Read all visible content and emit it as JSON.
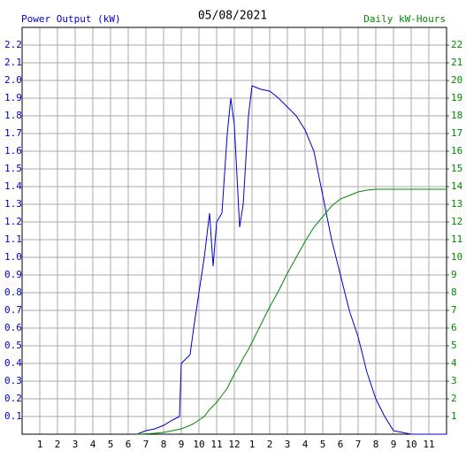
{
  "chart_data": {
    "type": "line",
    "title": "05/08/2021",
    "y_label": "Power Output (kW)",
    "y2_label": "Daily kW-Hours",
    "x": [
      6.5,
      7,
      7.5,
      8,
      8.5,
      8.9,
      9,
      9.5,
      9.7,
      10,
      10.3,
      10.6,
      10.8,
      11,
      11.3,
      11.6,
      11.8,
      12,
      12.3,
      12.5,
      12.8,
      13,
      13.5,
      14,
      14.5,
      15,
      15.5,
      16,
      16.5,
      17,
      17.5,
      18,
      18.5,
      19,
      19.5,
      20,
      20.5,
      21,
      21.5,
      22,
      24
    ],
    "series": [
      {
        "name": "Power Output (kW)",
        "color": "#0000cc",
        "values": [
          0,
          0.02,
          0.03,
          0.05,
          0.08,
          0.1,
          0.4,
          0.45,
          0.6,
          0.8,
          1.0,
          1.25,
          0.95,
          1.2,
          1.25,
          1.7,
          1.9,
          1.75,
          1.17,
          1.3,
          1.8,
          1.97,
          1.95,
          1.94,
          1.9,
          1.85,
          1.8,
          1.72,
          1.6,
          1.35,
          1.1,
          0.9,
          0.7,
          0.55,
          0.35,
          0.2,
          0.1,
          0.02,
          0.01,
          0,
          0
        ]
      },
      {
        "name": "Daily kW-Hours",
        "color": "#008800",
        "axis": "y2",
        "values": [
          0,
          0.02,
          0.05,
          0.1,
          0.2,
          0.28,
          0.3,
          0.5,
          0.6,
          0.8,
          1.0,
          1.4,
          1.6,
          1.8,
          2.2,
          2.6,
          3.0,
          3.4,
          3.9,
          4.3,
          4.8,
          5.2,
          6.2,
          7.2,
          8.1,
          9.1,
          10.0,
          10.9,
          11.7,
          12.3,
          12.9,
          13.3,
          13.5,
          13.7,
          13.8,
          13.85,
          13.85,
          13.85,
          13.85,
          13.85,
          13.85
        ]
      }
    ],
    "xlim": [
      0,
      24
    ],
    "xticks": [
      1,
      2,
      3,
      4,
      5,
      6,
      7,
      8,
      9,
      10,
      11,
      12,
      {
        "value": 13,
        "label": "1"
      },
      {
        "value": 14,
        "label": "2"
      },
      {
        "value": 15,
        "label": "3"
      },
      {
        "value": 16,
        "label": "4"
      },
      {
        "value": 17,
        "label": "5"
      },
      {
        "value": 18,
        "label": "6"
      },
      {
        "value": 19,
        "label": "7"
      },
      {
        "value": 20,
        "label": "8"
      },
      {
        "value": 21,
        "label": "9"
      },
      {
        "value": 22,
        "label": "10"
      },
      {
        "value": 23,
        "label": "11"
      }
    ],
    "ylim": [
      0,
      2.3
    ],
    "yticks": [
      0.1,
      0.2,
      0.3,
      0.4,
      0.5,
      0.6,
      0.7,
      0.8,
      0.9,
      {
        "value": 1,
        "label": "1.0"
      },
      1.1,
      1.2,
      1.3,
      1.4,
      1.5,
      1.6,
      1.7,
      1.8,
      1.9,
      {
        "value": 2,
        "label": "2.0"
      },
      2.1,
      2.2
    ],
    "y2lim": [
      0,
      23
    ],
    "y2ticks": [
      1,
      2,
      3,
      4,
      5,
      6,
      7,
      8,
      9,
      10,
      11,
      12,
      13,
      14,
      15,
      16,
      17,
      18,
      19,
      20,
      21,
      22
    ],
    "grid": true
  }
}
